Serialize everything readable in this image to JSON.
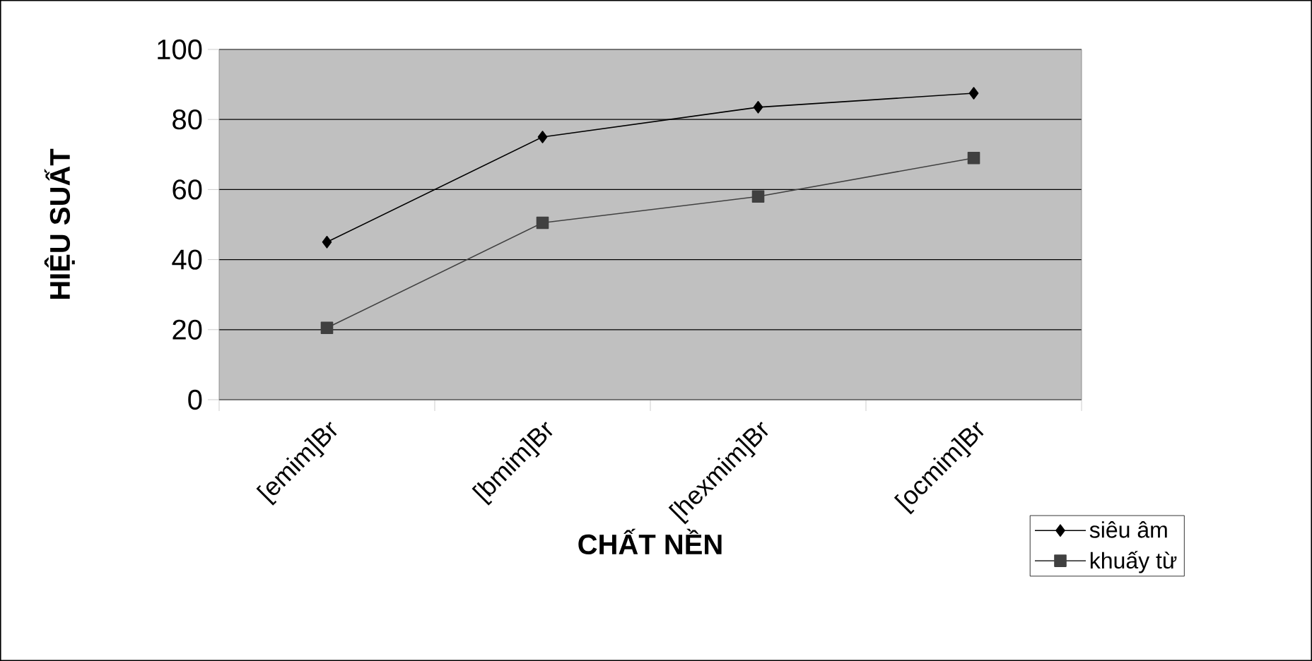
{
  "chart_data": {
    "type": "line",
    "xlabel": "CHẤT NỀN",
    "ylabel": "HIỆU SUẤT",
    "categories": [
      "[emim]Br",
      "[bmim]Br",
      "[hexmim]Br",
      "[ocmim]Br"
    ],
    "series": [
      {
        "name": "siêu âm",
        "color": "#000000",
        "marker": "diamond",
        "values": [
          45,
          75,
          83.5,
          87.5
        ]
      },
      {
        "name": "khuấy từ",
        "color": "#404040",
        "marker": "square",
        "values": [
          20.5,
          50.5,
          58,
          69
        ]
      }
    ],
    "ylim": [
      0,
      100
    ],
    "yticks": [
      0,
      20,
      40,
      60,
      80,
      100
    ],
    "grid": "y",
    "legend": "bottom right",
    "line_style": "solid"
  }
}
